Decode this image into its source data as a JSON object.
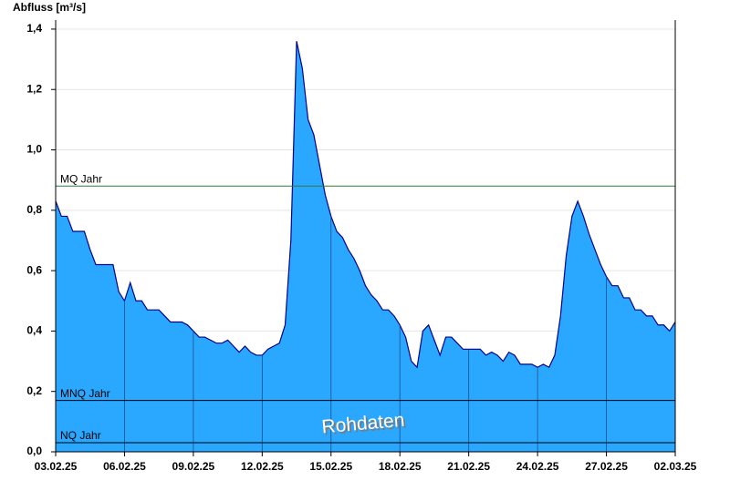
{
  "chart_data": {
    "type": "area",
    "y_label": "Abfluss [m³/s]",
    "annotation": "Rohdaten",
    "color": "#2aa7ff",
    "line_color": "#00008b",
    "categories": [
      "03.02.25",
      null,
      null,
      null,
      null,
      null,
      null,
      null,
      null,
      null,
      null,
      null,
      "06.02.25",
      null,
      null,
      null,
      null,
      null,
      null,
      null,
      null,
      null,
      null,
      null,
      "09.02.25",
      null,
      null,
      null,
      null,
      null,
      null,
      null,
      null,
      null,
      null,
      null,
      "12.02.25",
      null,
      null,
      null,
      null,
      null,
      null,
      null,
      null,
      null,
      null,
      null,
      "15.02.25",
      null,
      null,
      null,
      null,
      null,
      null,
      null,
      null,
      null,
      null,
      null,
      "18.02.25",
      null,
      null,
      null,
      null,
      null,
      null,
      null,
      null,
      null,
      null,
      null,
      "21.02.25",
      null,
      null,
      null,
      null,
      null,
      null,
      null,
      null,
      null,
      null,
      null,
      "24.02.25",
      null,
      null,
      null,
      null,
      null,
      null,
      null,
      null,
      null,
      null,
      null,
      "27.02.25",
      null,
      null,
      null,
      null,
      null,
      null,
      null,
      null,
      null,
      null,
      null,
      "02.03.25"
    ],
    "values": [
      0.83,
      0.78,
      0.78,
      0.73,
      0.73,
      0.73,
      0.67,
      0.62,
      0.62,
      0.62,
      0.62,
      0.53,
      0.5,
      0.56,
      0.5,
      0.5,
      0.47,
      0.47,
      0.47,
      0.45,
      0.43,
      0.43,
      0.43,
      0.42,
      0.4,
      0.38,
      0.38,
      0.37,
      0.36,
      0.36,
      0.37,
      0.35,
      0.33,
      0.35,
      0.33,
      0.32,
      0.32,
      0.34,
      0.35,
      0.36,
      0.42,
      0.7,
      1.36,
      1.27,
      1.1,
      1.05,
      0.95,
      0.85,
      0.78,
      0.73,
      0.71,
      0.67,
      0.64,
      0.6,
      0.55,
      0.52,
      0.5,
      0.47,
      0.47,
      0.45,
      0.42,
      0.38,
      0.3,
      0.28,
      0.4,
      0.42,
      0.37,
      0.32,
      0.38,
      0.38,
      0.36,
      0.34,
      0.34,
      0.34,
      0.34,
      0.32,
      0.33,
      0.32,
      0.3,
      0.33,
      0.32,
      0.29,
      0.29,
      0.29,
      0.28,
      0.29,
      0.28,
      0.32,
      0.45,
      0.65,
      0.78,
      0.83,
      0.78,
      0.72,
      0.67,
      0.62,
      0.58,
      0.55,
      0.55,
      0.51,
      0.51,
      0.47,
      0.47,
      0.45,
      0.45,
      0.42,
      0.42,
      0.4,
      0.43
    ],
    "ylim": [
      0,
      1.43
    ],
    "yticks": [
      {
        "value": 0,
        "label": "0,0"
      },
      {
        "value": 0.2,
        "label": "0,2"
      },
      {
        "value": 0.4,
        "label": "0,4"
      },
      {
        "value": 0.6,
        "label": "0,6"
      },
      {
        "value": 0.8,
        "label": "0,8"
      },
      {
        "value": 1.0,
        "label": "1,0"
      },
      {
        "value": 1.2,
        "label": "1,2"
      },
      {
        "value": 1.4,
        "label": "1,4"
      }
    ],
    "grid": true,
    "lines": [
      {
        "name": "MQ Jahr",
        "value": 0.88,
        "color": "#2e7d32"
      },
      {
        "name": "MNQ Jahr",
        "value": 0.17,
        "color": "#000000"
      },
      {
        "name": "NQ Jahr",
        "value": 0.03,
        "color": "#000000"
      }
    ]
  }
}
